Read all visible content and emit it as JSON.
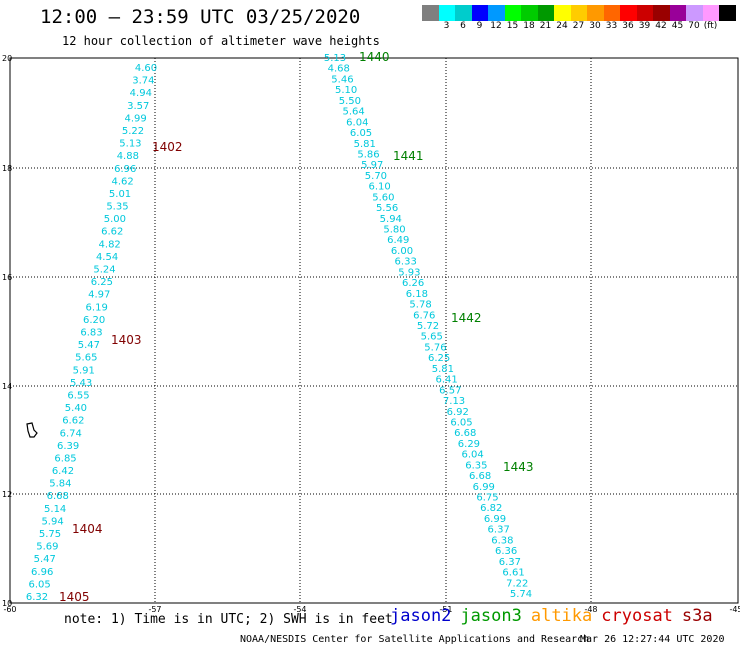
{
  "header": {
    "title": "12:00 – 23:59 UTC 03/25/2020",
    "subtitle": "12 hour collection of altimeter wave heights"
  },
  "colorbar": {
    "colors": [
      "#7f7f7f",
      "#00ffff",
      "#00cccc",
      "#0000ff",
      "#0099ff",
      "#00ff00",
      "#00cc00",
      "#009900",
      "#ffff00",
      "#ffcc00",
      "#ff9900",
      "#ff6600",
      "#ff0000",
      "#cc0000",
      "#990000",
      "#990099",
      "#cc99ff",
      "#ff99ff",
      "#000000"
    ],
    "labels": [
      "3",
      "6",
      "9",
      "12",
      "15",
      "18",
      "21",
      "24",
      "27",
      "30",
      "33",
      "36",
      "39",
      "42",
      "45",
      "70"
    ],
    "unit": "(ft)"
  },
  "axes": {
    "x_ticks": [
      "-60",
      "-57",
      "-54",
      "-51",
      "-48",
      "-45"
    ],
    "y_ticks": [
      "20",
      "18",
      "16",
      "14",
      "12",
      "10"
    ]
  },
  "track_left": [
    "4.60",
    "3.74",
    "4.94",
    "3.57",
    "4.99",
    "5.22",
    "5.13",
    "4.88",
    "6.96",
    "4.62",
    "5.01",
    "5.35",
    "5.00",
    "6.62",
    "4.82",
    "4.54",
    "5.24",
    "6.25",
    "4.97",
    "6.19",
    "6.20",
    "6.83",
    "5.47",
    "5.65",
    "5.91",
    "5.43",
    "6.55",
    "5.40",
    "6.62",
    "6.74",
    "6.39",
    "6.85",
    "6.42",
    "5.84",
    "6.68",
    "5.14",
    "5.94",
    "5.75",
    "5.69",
    "5.47",
    "6.96",
    "6.05",
    "6.32"
  ],
  "track_right": [
    "5.13",
    "4.68",
    "5.46",
    "5.10",
    "5.50",
    "5.64",
    "6.04",
    "6.05",
    "5.81",
    "5.86",
    "5.97",
    "5.70",
    "6.10",
    "5.60",
    "5.56",
    "5.94",
    "5.80",
    "6.49",
    "6.00",
    "6.33",
    "5.93",
    "6.26",
    "6.18",
    "5.78",
    "6.76",
    "5.72",
    "5.65",
    "5.76",
    "6.25",
    "5.81",
    "6.41",
    "6.57",
    "7.13",
    "6.92",
    "6.05",
    "6.68",
    "6.29",
    "6.04",
    "6.35",
    "6.68",
    "6.99",
    "6.75",
    "6.82",
    "6.99",
    "6.37",
    "6.38",
    "6.36",
    "6.37",
    "6.61",
    "7.22",
    "5.74"
  ],
  "pass_labels_left": [
    "1402",
    "1403",
    "1404",
    "1405"
  ],
  "pass_labels_right": [
    "1440",
    "1441",
    "1442",
    "1443"
  ],
  "colors": {
    "track": "#00c8dc",
    "cryosat_pass": "#800000",
    "jason3_pass": "#008000",
    "grid": "#000000"
  },
  "footer": {
    "note": "note: 1) Time is in UTC; 2) SWH is in feet",
    "legend": [
      {
        "name": "jason2",
        "color": "#0000cc"
      },
      {
        "name": "jason3",
        "color": "#009900"
      },
      {
        "name": "altika",
        "color": "#ff9900"
      },
      {
        "name": "cryosat",
        "color": "#cc0000"
      },
      {
        "name": "s3a",
        "color": "#990000"
      }
    ],
    "credit": "NOAA/NESDIS Center for Satellite Applications and Research",
    "timestamp": "Mar 26 12:27:44 UTC 2020"
  }
}
